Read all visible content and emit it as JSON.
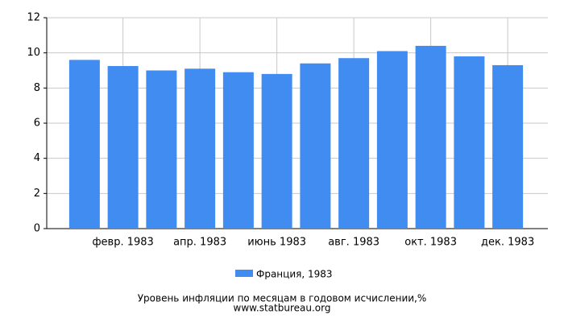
{
  "chart_data": {
    "type": "bar",
    "title": "Уровень инфляции по месяцам в годовом исчислении,%",
    "source": "www.statbureau.org",
    "categories": [
      null,
      "февр. 1983",
      null,
      "апр. 1983",
      null,
      "июнь 1983",
      null,
      "авг. 1983",
      null,
      "окт. 1983",
      null,
      "дек. 1983"
    ],
    "series": [
      {
        "name": "Франция, 1983",
        "color": "#418cf0",
        "values": [
          9.6,
          9.25,
          9.0,
          9.1,
          8.9,
          8.8,
          9.4,
          9.7,
          10.1,
          10.4,
          9.8,
          9.3
        ]
      }
    ],
    "ylim": [
      0,
      12
    ],
    "yticks": [
      0,
      2,
      4,
      6,
      8,
      10,
      12
    ],
    "grid": true
  }
}
